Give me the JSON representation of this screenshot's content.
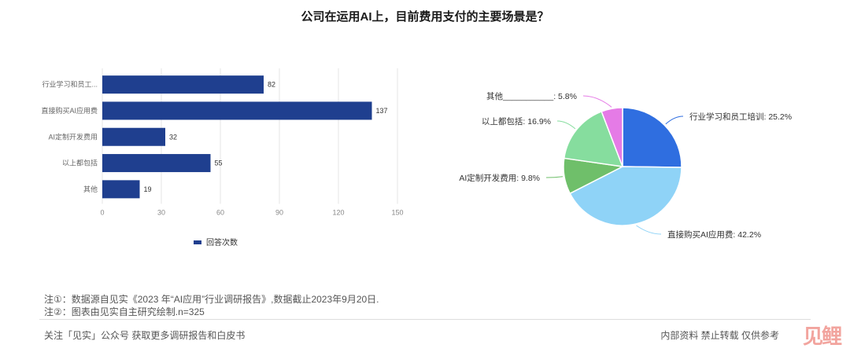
{
  "title": "公司在运用AI上，目前费用支付的主要场景是？",
  "chart_data": [
    {
      "type": "bar",
      "orientation": "horizontal",
      "categories": [
        "行业学习和员工...",
        "直接购买AI应用费",
        "AI定制开发费用",
        "以上都包括",
        "其他"
      ],
      "series": [
        {
          "name": "回答次数",
          "values": [
            82,
            137,
            32,
            55,
            19
          ]
        }
      ],
      "xlim": [
        0,
        150
      ],
      "xticks": [
        0,
        30,
        60,
        90,
        120,
        150
      ],
      "grid": true,
      "legend": "bottom",
      "color": "#1f3f8f"
    },
    {
      "type": "pie",
      "slices": [
        {
          "label": "行业学习和员工培训: 25.2%",
          "value": 25.2,
          "color": "#2f6ee0"
        },
        {
          "label": "直接购买AI应用费: 42.2%",
          "value": 42.2,
          "color": "#8fd3f7"
        },
        {
          "label": "AI定制开发费用: 9.8%",
          "value": 9.8,
          "color": "#6fbf6a"
        },
        {
          "label": "以上都包括: 16.9%",
          "value": 16.9,
          "color": "#86dd9e"
        },
        {
          "label": "其他___________: 5.8%",
          "value": 5.8,
          "color": "#e57be6"
        }
      ]
    }
  ],
  "notes": [
    "注①：数据源自见实《2023 年“AI应用”行业调研报告》,数据截止2023年9月20日.",
    "注②：图表由见实自主研究绘制.n=325"
  ],
  "footer": {
    "left": "关注「见实」公众号 获取更多调研报告和白皮书",
    "right": "内部资料 禁止转载 仅供参考",
    "logo": "见鲤"
  }
}
